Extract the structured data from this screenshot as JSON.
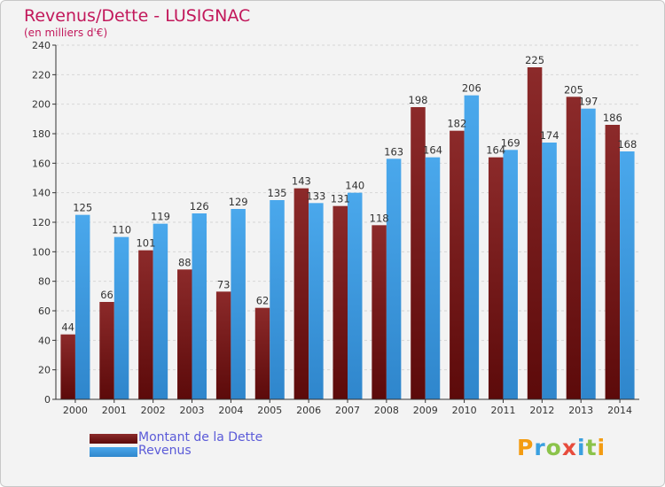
{
  "header": {
    "title": "Revenus/Dette - LUSIGNAC",
    "subtitle": "(en milliers d'€)"
  },
  "legend": {
    "items": [
      {
        "label": "Montant de la Dette",
        "color": "#7a1a1a"
      },
      {
        "label": "Revenus",
        "color": "#3f9ee0"
      }
    ]
  },
  "logo": {
    "text": "Proxiti",
    "letters": [
      "P",
      "r",
      "o",
      "x",
      "i",
      "t",
      "i"
    ],
    "colors": [
      "#f39c12",
      "#3aa0e0",
      "#8bc34a",
      "#e74c3c",
      "#3aa0e0",
      "#8bc34a",
      "#f39c12"
    ]
  },
  "chart_data": {
    "type": "bar",
    "title": "Revenus/Dette - LUSIGNAC",
    "subtitle": "(en milliers d'€)",
    "categories": [
      "2000",
      "2001",
      "2002",
      "2003",
      "2004",
      "2005",
      "2006",
      "2007",
      "2008",
      "2009",
      "2010",
      "2011",
      "2012",
      "2013",
      "2014"
    ],
    "series": [
      {
        "name": "Montant de la Dette",
        "color": "#7a1a1a",
        "values": [
          44,
          66,
          101,
          88,
          73,
          62,
          143,
          131,
          118,
          198,
          182,
          164,
          225,
          205,
          186
        ]
      },
      {
        "name": "Revenus",
        "color": "#3f9ee0",
        "values": [
          125,
          110,
          119,
          126,
          129,
          135,
          133,
          140,
          163,
          164,
          206,
          169,
          174,
          197,
          168
        ]
      }
    ],
    "ylim": [
      0,
      240
    ],
    "ytick_step": 20,
    "yticks": [
      "0",
      "20",
      "40",
      "60",
      "80",
      "100",
      "120",
      "140",
      "160",
      "180",
      "200",
      "220",
      "240"
    ],
    "grid": true,
    "legend_position": "bottom-left"
  }
}
